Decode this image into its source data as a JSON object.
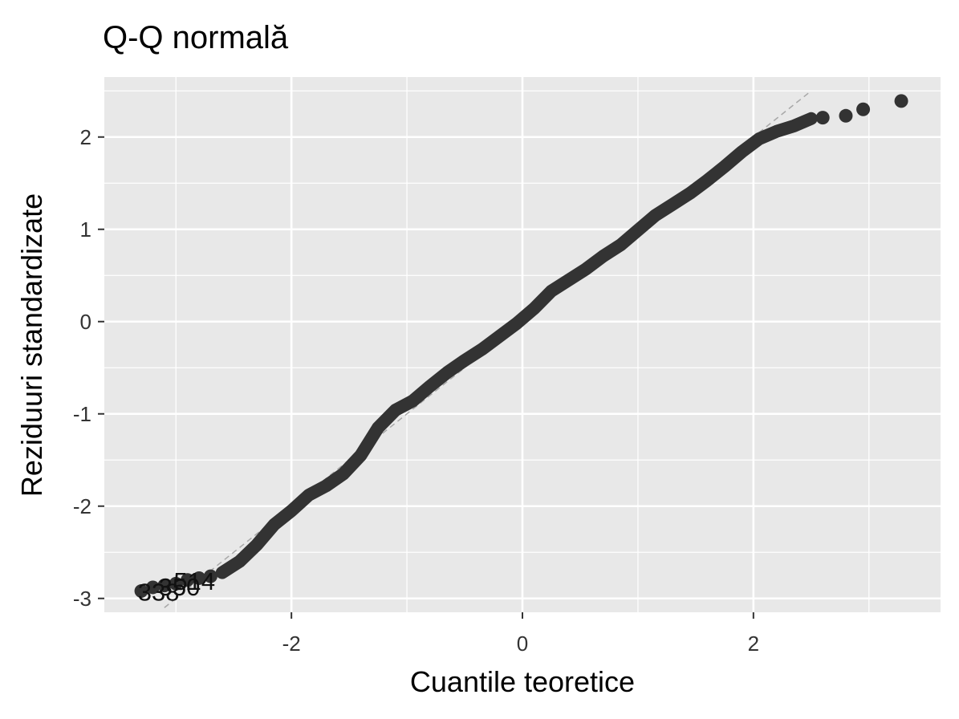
{
  "chart_data": {
    "type": "scatter",
    "title": "Q-Q normală",
    "xlabel": "Cuantile teoretice",
    "ylabel": "Reziduuri standardizate",
    "xlim": [
      -3.62,
      3.62
    ],
    "ylim": [
      -3.15,
      2.65
    ],
    "x_ticks": [
      -2,
      0,
      2
    ],
    "y_ticks": [
      -3,
      -2,
      -1,
      0,
      1,
      2
    ],
    "x_tick_labels": [
      "-2",
      "0",
      "2"
    ],
    "y_tick_labels": [
      "-3",
      "-2",
      "-1",
      "0",
      "1",
      "2"
    ],
    "grid": true,
    "background": "#e8e8e8",
    "grid_color": "#ffffff",
    "point_color": "#333333",
    "reference_line": {
      "slope": 1.0,
      "intercept": 0.0,
      "style": "dashed",
      "color": "#a8a8a8"
    },
    "curve": {
      "x": [
        -2.6,
        -2.45,
        -2.3,
        -2.15,
        -2.0,
        -1.85,
        -1.7,
        -1.55,
        -1.4,
        -1.25,
        -1.1,
        -0.95,
        -0.8,
        -0.65,
        -0.5,
        -0.35,
        -0.2,
        -0.05,
        0.1,
        0.25,
        0.4,
        0.55,
        0.7,
        0.85,
        1.0,
        1.15,
        1.3,
        1.45,
        1.6,
        1.75,
        1.9,
        2.05,
        2.2,
        2.35,
        2.5
      ],
      "y": [
        -2.72,
        -2.6,
        -2.42,
        -2.2,
        -2.05,
        -1.88,
        -1.78,
        -1.65,
        -1.45,
        -1.15,
        -0.96,
        -0.86,
        -0.7,
        -0.55,
        -0.42,
        -0.3,
        -0.16,
        -0.02,
        0.14,
        0.33,
        0.45,
        0.57,
        0.71,
        0.83,
        0.99,
        1.15,
        1.27,
        1.39,
        1.53,
        1.68,
        1.84,
        1.98,
        2.06,
        2.12,
        2.2
      ]
    },
    "points": {
      "x": [
        -3.3,
        -3.2,
        -3.1,
        -3.0,
        -2.9,
        -2.8,
        -2.7,
        2.6,
        2.8,
        2.95,
        3.28
      ],
      "y": [
        -2.92,
        -2.88,
        -2.86,
        -2.84,
        -2.8,
        -2.78,
        -2.76,
        2.21,
        2.23,
        2.3,
        2.39
      ]
    },
    "annotations": [
      {
        "text": "338",
        "x": -3.33,
        "y": -2.93
      },
      {
        "text": "350",
        "x": -3.15,
        "y": -2.87
      },
      {
        "text": "514",
        "x": -3.02,
        "y": -2.81
      }
    ]
  }
}
